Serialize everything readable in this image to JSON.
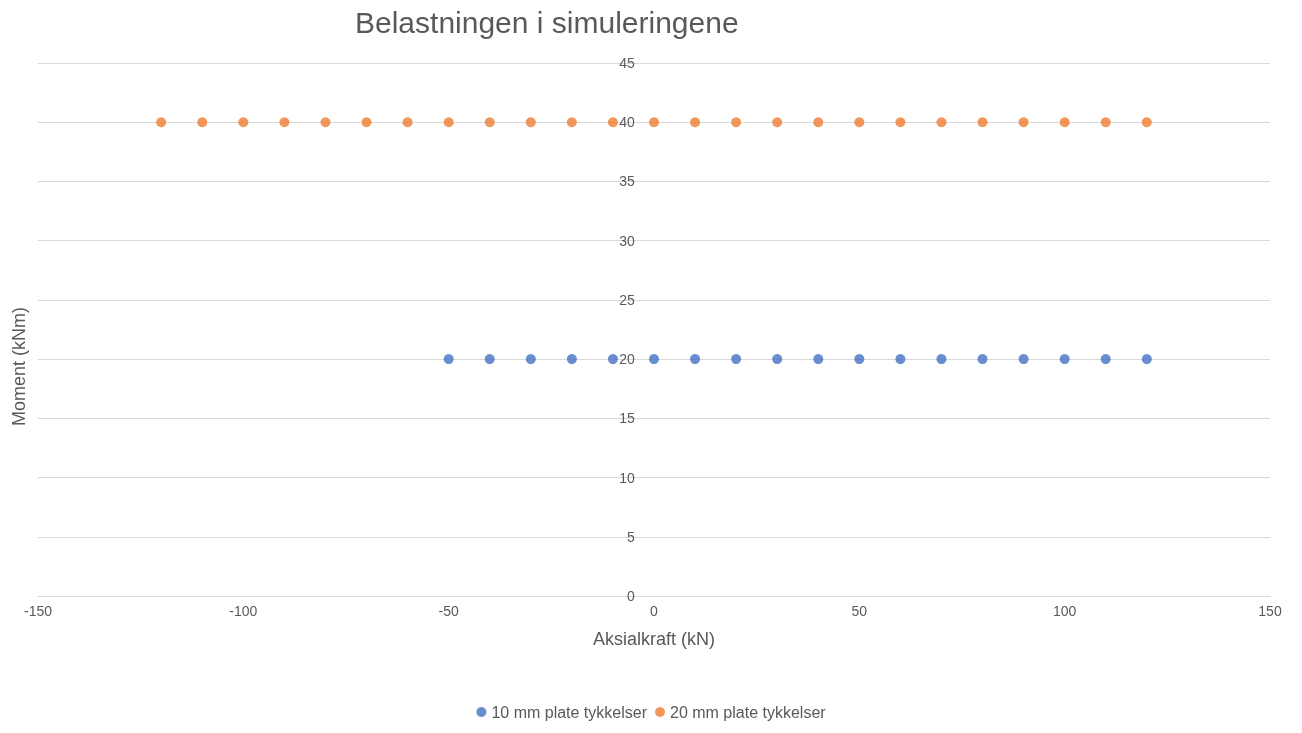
{
  "chart_data": {
    "type": "scatter",
    "title": "Belastningen i simuleringene",
    "xlabel": "Aksialkraft (kN)",
    "ylabel": "Moment (kNm)",
    "xlim": [
      -150,
      150
    ],
    "xticks": [
      -150,
      -100,
      -50,
      0,
      50,
      100,
      150
    ],
    "ylim": [
      0,
      45
    ],
    "yticks": [
      0,
      5,
      10,
      15,
      20,
      25,
      30,
      35,
      40,
      45
    ],
    "grid": "y",
    "legend": "bottom",
    "marker": "circle",
    "series": [
      {
        "name": "10 mm plate tykkelser",
        "color": "#4472c4",
        "x": [
          -50,
          -40,
          -30,
          -20,
          -10,
          0,
          10,
          20,
          30,
          40,
          50,
          60,
          70,
          80,
          90,
          100,
          110,
          120
        ],
        "values": [
          20,
          20,
          20,
          20,
          20,
          20,
          20,
          20,
          20,
          20,
          20,
          20,
          20,
          20,
          20,
          20,
          20,
          20
        ]
      },
      {
        "name": "20 mm plate tykkelser",
        "color": "#ed7d31",
        "x": [
          -120,
          -110,
          -100,
          -90,
          -80,
          -70,
          -60,
          -50,
          -40,
          -30,
          -20,
          -10,
          0,
          10,
          20,
          30,
          40,
          50,
          60,
          70,
          80,
          90,
          100,
          110,
          120
        ],
        "values": [
          40,
          40,
          40,
          40,
          40,
          40,
          40,
          40,
          40,
          40,
          40,
          40,
          40,
          40,
          40,
          40,
          40,
          40,
          40,
          40,
          40,
          40,
          40,
          40,
          40
        ]
      }
    ]
  }
}
